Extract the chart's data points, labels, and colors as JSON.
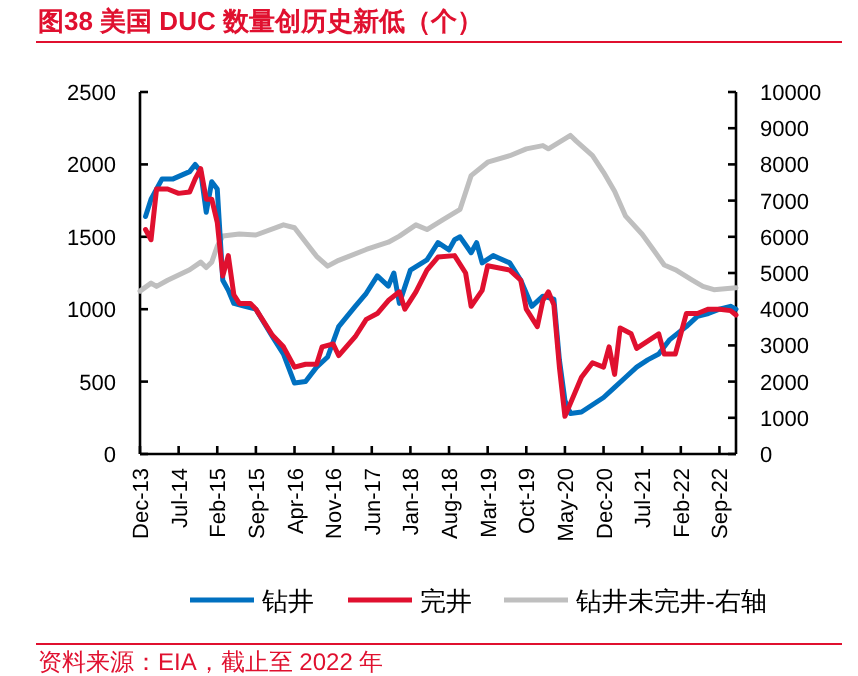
{
  "chart_data": {
    "type": "line",
    "title": "图38  美国 DUC 数量创历史新低（个）",
    "annotations": [
      "资料来源：EIA，截止至 2022 年"
    ],
    "xlim": [
      "2013-12",
      "2022-12"
    ],
    "xticks": [
      {
        "value": "2013-12",
        "label": "Dec-13"
      },
      {
        "value": "2014-07",
        "label": "Jul-14"
      },
      {
        "value": "2015-02",
        "label": "Feb-15"
      },
      {
        "value": "2015-09",
        "label": "Sep-15"
      },
      {
        "value": "2016-04",
        "label": "Apr-16"
      },
      {
        "value": "2016-11",
        "label": "Nov-16"
      },
      {
        "value": "2017-06",
        "label": "Jun-17"
      },
      {
        "value": "2018-01",
        "label": "Jan-18"
      },
      {
        "value": "2018-08",
        "label": "Aug-18"
      },
      {
        "value": "2019-03",
        "label": "Mar-19"
      },
      {
        "value": "2019-10",
        "label": "Oct-19"
      },
      {
        "value": "2020-05",
        "label": "May-20"
      },
      {
        "value": "2020-12",
        "label": "Dec-20"
      },
      {
        "value": "2021-07",
        "label": "Jul-21"
      },
      {
        "value": "2022-02",
        "label": "Feb-22"
      },
      {
        "value": "2022-09",
        "label": "Sep-22"
      }
    ],
    "ylim": [
      0,
      2500
    ],
    "yticks": [
      0,
      500,
      1000,
      1500,
      2000,
      2500
    ],
    "y2lim": [
      0,
      10000
    ],
    "y2ticks": [
      0,
      1000,
      2000,
      3000,
      4000,
      5000,
      6000,
      7000,
      8000,
      9000,
      10000
    ],
    "legend": "bottom",
    "grid": false,
    "line_style": "solid",
    "marker": "none",
    "series": [
      {
        "name": "钻井",
        "color": "#0070c0",
        "x": [
          "2014-01",
          "2014-02",
          "2014-04",
          "2014-06",
          "2014-09",
          "2014-10",
          "2014-11",
          "2014-12",
          "2015-01",
          "2015-02",
          "2015-03",
          "2015-04",
          "2015-05",
          "2015-07",
          "2015-09",
          "2015-12",
          "2016-02",
          "2016-04",
          "2016-06",
          "2016-08",
          "2016-10",
          "2016-12",
          "2017-03",
          "2017-05",
          "2017-07",
          "2017-09",
          "2017-10",
          "2017-11",
          "2018-01",
          "2018-04",
          "2018-06",
          "2018-08",
          "2018-09",
          "2018-10",
          "2018-12",
          "2019-01",
          "2019-02",
          "2019-04",
          "2019-07",
          "2019-09",
          "2019-11",
          "2020-01",
          "2020-03",
          "2020-04",
          "2020-05",
          "2020-06",
          "2020-08",
          "2020-12",
          "2021-02",
          "2021-04",
          "2021-06",
          "2021-08",
          "2021-10",
          "2021-12",
          "2022-03",
          "2022-05",
          "2022-07",
          "2022-09",
          "2022-11",
          "2022-12"
        ],
        "values": [
          1640,
          1760,
          1900,
          1900,
          1950,
          2000,
          1950,
          1670,
          1880,
          1830,
          1200,
          1130,
          1040,
          1020,
          1000,
          810,
          690,
          490,
          500,
          600,
          670,
          880,
          1020,
          1110,
          1230,
          1160,
          1250,
          1040,
          1270,
          1340,
          1460,
          1410,
          1480,
          1500,
          1390,
          1460,
          1320,
          1370,
          1320,
          1200,
          1020,
          1090,
          1070,
          650,
          370,
          280,
          290,
          390,
          460,
          530,
          600,
          650,
          690,
          790,
          880,
          950,
          970,
          1000,
          1020,
          1000
        ]
      },
      {
        "name": "完井",
        "color": "#e0102f",
        "x": [
          "2014-01",
          "2014-02",
          "2014-03",
          "2014-05",
          "2014-07",
          "2014-09",
          "2014-10",
          "2014-11",
          "2014-12",
          "2015-01",
          "2015-02",
          "2015-03",
          "2015-04",
          "2015-05",
          "2015-06",
          "2015-08",
          "2015-09",
          "2015-12",
          "2016-02",
          "2016-04",
          "2016-06",
          "2016-08",
          "2016-09",
          "2016-11",
          "2016-12",
          "2017-03",
          "2017-05",
          "2017-07",
          "2017-09",
          "2017-11",
          "2017-12",
          "2018-02",
          "2018-04",
          "2018-06",
          "2018-09",
          "2018-11",
          "2018-12",
          "2019-02",
          "2019-03",
          "2019-07",
          "2019-09",
          "2019-10",
          "2019-12",
          "2020-01",
          "2020-02",
          "2020-03",
          "2020-04",
          "2020-05",
          "2020-08",
          "2020-10",
          "2020-12",
          "2021-01",
          "2021-02",
          "2021-03",
          "2021-05",
          "2021-06",
          "2021-08",
          "2021-10",
          "2021-11",
          "2022-01",
          "2022-03",
          "2022-05",
          "2022-07",
          "2022-09",
          "2022-11",
          "2022-12"
        ],
        "values": [
          1550,
          1480,
          1830,
          1830,
          1800,
          1810,
          1900,
          1970,
          1760,
          1760,
          1600,
          1230,
          1370,
          1100,
          1040,
          1040,
          1000,
          820,
          740,
          600,
          620,
          620,
          740,
          760,
          680,
          810,
          930,
          970,
          1060,
          1120,
          1000,
          1120,
          1270,
          1360,
          1370,
          1250,
          1020,
          1130,
          1300,
          1270,
          1200,
          1000,
          880,
          1060,
          1120,
          1030,
          600,
          260,
          530,
          630,
          600,
          740,
          550,
          870,
          830,
          730,
          780,
          830,
          690,
          690,
          970,
          970,
          1000,
          1000,
          990,
          960
        ]
      },
      {
        "name": "钻井未完井-右轴",
        "color": "#bfbfbf",
        "axis": "y2",
        "x": [
          "2013-12",
          "2014-02",
          "2014-03",
          "2014-05",
          "2014-09",
          "2014-11",
          "2014-12",
          "2015-01",
          "2015-02",
          "2015-03",
          "2015-06",
          "2015-09",
          "2016-02",
          "2016-04",
          "2016-08",
          "2016-10",
          "2016-12",
          "2017-05",
          "2017-09",
          "2017-11",
          "2018-02",
          "2018-04",
          "2018-07",
          "2018-10",
          "2018-12",
          "2019-03",
          "2019-07",
          "2019-10",
          "2020-01",
          "2020-02",
          "2020-06",
          "2020-07",
          "2020-10",
          "2020-12",
          "2021-02",
          "2021-04",
          "2021-07",
          "2021-09",
          "2021-11",
          "2022-01",
          "2022-04",
          "2022-06",
          "2022-08",
          "2022-12"
        ],
        "values": [
          4500,
          4720,
          4630,
          4800,
          5090,
          5300,
          5150,
          5300,
          5740,
          6020,
          6080,
          6050,
          6330,
          6250,
          5460,
          5190,
          5350,
          5650,
          5850,
          6020,
          6330,
          6200,
          6480,
          6760,
          7690,
          8060,
          8240,
          8430,
          8520,
          8430,
          8800,
          8650,
          8240,
          7780,
          7260,
          6570,
          6070,
          5650,
          5220,
          5090,
          4810,
          4630,
          4540,
          4590
        ]
      }
    ]
  }
}
